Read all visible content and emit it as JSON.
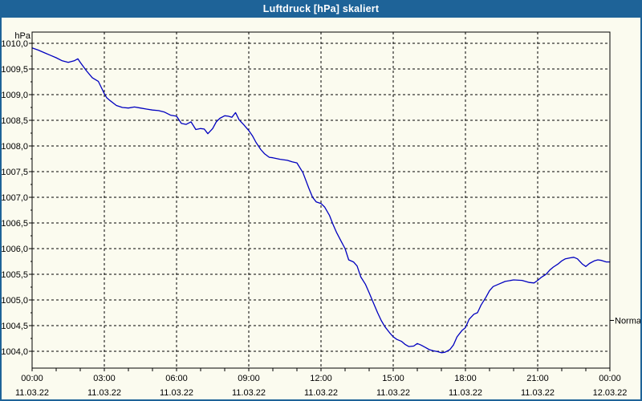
{
  "window": {
    "title": "Luftdruck [hPa] skaliert"
  },
  "colors": {
    "titlebar": "#1e6398",
    "window_border": "#1e6398",
    "background": "#fbfbef",
    "grid": "#000000",
    "axis": "#000000",
    "text": "#000000",
    "title_text": "#ffffff",
    "line": "#0000bf"
  },
  "chart_data": {
    "type": "line",
    "title": "Luftdruck [hPa] skaliert",
    "y_unit_label": "hPa",
    "xlabel": "",
    "ylabel": "hPa",
    "grid": "dashed",
    "legend": "none",
    "xlim_hours": [
      0,
      24
    ],
    "ylim": [
      1003.67,
      1010.22
    ],
    "x_minor_tick_every_hours": 1,
    "y_major_tick_step": 0.5,
    "y_minor_tick_step": 0.25,
    "y_ticks": [
      {
        "value": 1010.0,
        "label": "1010,0"
      },
      {
        "value": 1009.5,
        "label": "1009,5"
      },
      {
        "value": 1009.0,
        "label": "1009,0"
      },
      {
        "value": 1008.5,
        "label": "1008,5"
      },
      {
        "value": 1008.0,
        "label": "1008,0"
      },
      {
        "value": 1007.5,
        "label": "1007,5"
      },
      {
        "value": 1007.0,
        "label": "1007,0"
      },
      {
        "value": 1006.5,
        "label": "1006,5"
      },
      {
        "value": 1006.0,
        "label": "1006,0"
      },
      {
        "value": 1005.5,
        "label": "1005,5"
      },
      {
        "value": 1005.0,
        "label": "1005,0"
      },
      {
        "value": 1004.5,
        "label": "1004,5"
      },
      {
        "value": 1004.0,
        "label": "1004,0"
      }
    ],
    "x_ticks": [
      {
        "hour": 0,
        "time": "00:00",
        "date": "11.03.22",
        "gridline": false
      },
      {
        "hour": 3,
        "time": "03:00",
        "date": "11.03.22",
        "gridline": true
      },
      {
        "hour": 6,
        "time": "06:00",
        "date": "11.03.22",
        "gridline": true
      },
      {
        "hour": 9,
        "time": "09:00",
        "date": "11.03.22",
        "gridline": true
      },
      {
        "hour": 12,
        "time": "12:00",
        "date": "11.03.22",
        "gridline": true
      },
      {
        "hour": 15,
        "time": "15:00",
        "date": "11.03.22",
        "gridline": true
      },
      {
        "hour": 18,
        "time": "18:00",
        "date": "11.03.22",
        "gridline": true
      },
      {
        "hour": 21,
        "time": "21:00",
        "date": "11.03.22",
        "gridline": true
      },
      {
        "hour": 24,
        "time": "00:00",
        "date": "12.03.22",
        "gridline": false
      }
    ],
    "normal_marker": {
      "label": "Normal",
      "value": 1004.6
    },
    "series": [
      {
        "name": "Luftdruck",
        "color": "#0000bf",
        "points": [
          [
            0,
            1009.91
          ],
          [
            0.25,
            1009.87
          ],
          [
            0.5,
            1009.82
          ],
          [
            0.75,
            1009.77
          ],
          [
            1,
            1009.72
          ],
          [
            1.25,
            1009.66
          ],
          [
            1.5,
            1009.63
          ],
          [
            1.75,
            1009.66
          ],
          [
            1.9,
            1009.7
          ],
          [
            2,
            1009.63
          ],
          [
            2.25,
            1009.47
          ],
          [
            2.5,
            1009.33
          ],
          [
            2.75,
            1009.26
          ],
          [
            3,
            1009.02
          ],
          [
            3.1,
            1008.94
          ],
          [
            3.25,
            1008.88
          ],
          [
            3.5,
            1008.79
          ],
          [
            3.75,
            1008.75
          ],
          [
            4,
            1008.74
          ],
          [
            4.25,
            1008.76
          ],
          [
            4.5,
            1008.74
          ],
          [
            4.75,
            1008.72
          ],
          [
            5,
            1008.7
          ],
          [
            5.25,
            1008.69
          ],
          [
            5.5,
            1008.66
          ],
          [
            5.75,
            1008.6
          ],
          [
            6,
            1008.58
          ],
          [
            6.2,
            1008.44
          ],
          [
            6.4,
            1008.42
          ],
          [
            6.6,
            1008.47
          ],
          [
            6.8,
            1008.32
          ],
          [
            7,
            1008.34
          ],
          [
            7.15,
            1008.33
          ],
          [
            7.3,
            1008.24
          ],
          [
            7.5,
            1008.34
          ],
          [
            7.65,
            1008.47
          ],
          [
            7.8,
            1008.54
          ],
          [
            8,
            1008.59
          ],
          [
            8.15,
            1008.58
          ],
          [
            8.3,
            1008.56
          ],
          [
            8.45,
            1008.65
          ],
          [
            8.6,
            1008.51
          ],
          [
            8.8,
            1008.41
          ],
          [
            9,
            1008.3
          ],
          [
            9.15,
            1008.2
          ],
          [
            9.3,
            1008.07
          ],
          [
            9.5,
            1007.93
          ],
          [
            9.65,
            1007.85
          ],
          [
            9.85,
            1007.78
          ],
          [
            10,
            1007.77
          ],
          [
            10.3,
            1007.74
          ],
          [
            10.6,
            1007.72
          ],
          [
            10.8,
            1007.69
          ],
          [
            11,
            1007.67
          ],
          [
            11.25,
            1007.48
          ],
          [
            11.5,
            1007.17
          ],
          [
            11.65,
            1007.0
          ],
          [
            11.8,
            1006.91
          ],
          [
            12,
            1006.88
          ],
          [
            12.15,
            1006.81
          ],
          [
            12.35,
            1006.65
          ],
          [
            12.5,
            1006.47
          ],
          [
            12.65,
            1006.31
          ],
          [
            12.85,
            1006.13
          ],
          [
            13,
            1006.0
          ],
          [
            13.15,
            1005.78
          ],
          [
            13.35,
            1005.74
          ],
          [
            13.5,
            1005.66
          ],
          [
            13.65,
            1005.45
          ],
          [
            13.85,
            1005.3
          ],
          [
            14,
            1005.14
          ],
          [
            14.15,
            1004.97
          ],
          [
            14.35,
            1004.75
          ],
          [
            14.5,
            1004.6
          ],
          [
            14.65,
            1004.48
          ],
          [
            14.85,
            1004.36
          ],
          [
            15,
            1004.28
          ],
          [
            15.15,
            1004.23
          ],
          [
            15.35,
            1004.19
          ],
          [
            15.5,
            1004.13
          ],
          [
            15.65,
            1004.09
          ],
          [
            15.85,
            1004.1
          ],
          [
            16,
            1004.15
          ],
          [
            16.15,
            1004.12
          ],
          [
            16.35,
            1004.07
          ],
          [
            16.5,
            1004.03
          ],
          [
            16.65,
            1004.01
          ],
          [
            16.85,
            1003.99
          ],
          [
            17,
            1003.97
          ],
          [
            17.15,
            1003.98
          ],
          [
            17.35,
            1004.03
          ],
          [
            17.5,
            1004.12
          ],
          [
            17.65,
            1004.28
          ],
          [
            17.85,
            1004.4
          ],
          [
            18,
            1004.46
          ],
          [
            18.15,
            1004.62
          ],
          [
            18.35,
            1004.72
          ],
          [
            18.5,
            1004.75
          ],
          [
            18.65,
            1004.9
          ],
          [
            18.85,
            1005.05
          ],
          [
            19,
            1005.18
          ],
          [
            19.15,
            1005.26
          ],
          [
            19.35,
            1005.3
          ],
          [
            19.65,
            1005.36
          ],
          [
            20,
            1005.39
          ],
          [
            20.35,
            1005.38
          ],
          [
            20.65,
            1005.34
          ],
          [
            20.85,
            1005.33
          ],
          [
            21,
            1005.38
          ],
          [
            21.15,
            1005.44
          ],
          [
            21.35,
            1005.5
          ],
          [
            21.5,
            1005.58
          ],
          [
            21.65,
            1005.64
          ],
          [
            21.85,
            1005.7
          ],
          [
            22,
            1005.76
          ],
          [
            22.15,
            1005.8
          ],
          [
            22.35,
            1005.82
          ],
          [
            22.5,
            1005.83
          ],
          [
            22.65,
            1005.8
          ],
          [
            22.85,
            1005.7
          ],
          [
            23,
            1005.65
          ],
          [
            23.15,
            1005.71
          ],
          [
            23.35,
            1005.76
          ],
          [
            23.5,
            1005.78
          ],
          [
            23.65,
            1005.77
          ],
          [
            23.85,
            1005.74
          ],
          [
            24,
            1005.74
          ]
        ]
      }
    ]
  }
}
